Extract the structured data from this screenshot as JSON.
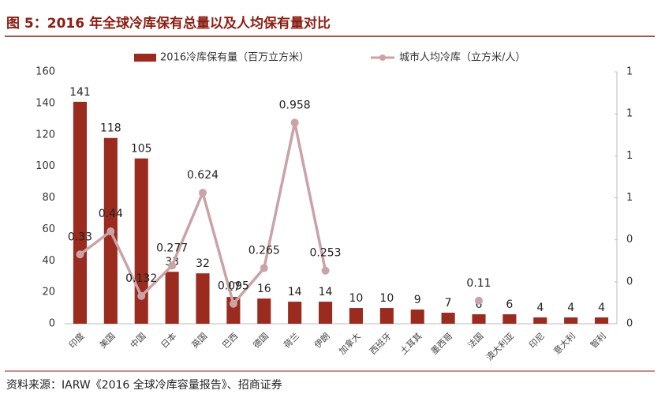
{
  "chart_data": {
    "type": "bar-line",
    "title": "图 5：2016 年全球冷库保有总量以及人均保有量对比",
    "source": "资料来源：IARW《2016 全球冷库容量报告》、招商证券",
    "categories": [
      "印度",
      "美国",
      "中国",
      "日本",
      "英国",
      "巴西",
      "德国",
      "荷兰",
      "伊朗",
      "加拿大",
      "西班牙",
      "土耳其",
      "墨西哥",
      "法国",
      "澳大利亚",
      "印尼",
      "意大利",
      "智利"
    ],
    "series": [
      {
        "name": "2016冷库保有量（百万立方米）",
        "type": "bar",
        "color": "#9b2a1f",
        "values": [
          141,
          118,
          105,
          33,
          32,
          17,
          16,
          14,
          14,
          10,
          10,
          9,
          7,
          6,
          6,
          4,
          4,
          4
        ]
      },
      {
        "name": "城市人均冷库（立方米/人）",
        "type": "line",
        "axis": "y2",
        "color": "#c9a3a6",
        "values": [
          0.33,
          0.44,
          0.132,
          0.277,
          0.624,
          0.095,
          0.265,
          0.958,
          0.253,
          null,
          null,
          null,
          null,
          0.11,
          null,
          null,
          null,
          null
        ]
      }
    ],
    "ylim": [
      0,
      160
    ],
    "yticks": [
      0,
      20,
      40,
      60,
      80,
      100,
      120,
      140,
      160
    ],
    "y2lim": [
      0,
      1.2
    ],
    "y2ticks": [
      0,
      {
        "value": 0.2,
        "label": "0"
      },
      {
        "value": 0.4,
        "label": "0"
      },
      {
        "value": 0.6,
        "label": "1"
      },
      {
        "value": 0.8,
        "label": "1"
      },
      {
        "value": 1.0,
        "label": "1"
      },
      {
        "value": 1.2,
        "label": "1"
      }
    ],
    "legend": "top"
  }
}
